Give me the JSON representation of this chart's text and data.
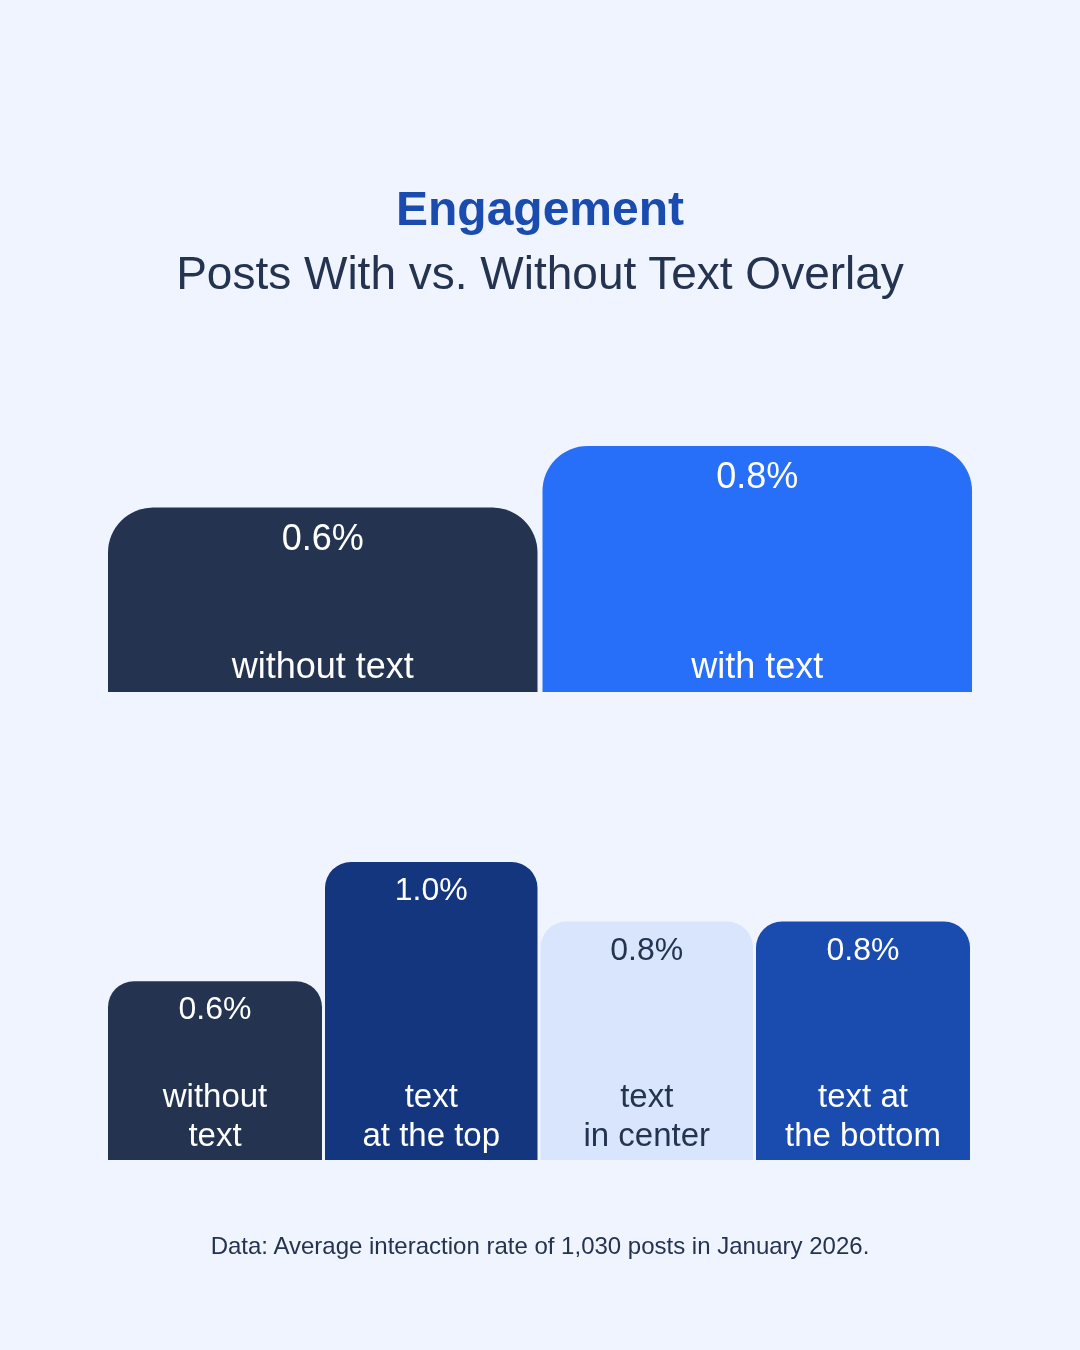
{
  "chart_data": [
    {
      "type": "bar",
      "title": "Engagement",
      "subtitle": "Posts With vs. Without Text Overlay",
      "categories": [
        "without text",
        "with text"
      ],
      "values": [
        0.6,
        0.8
      ],
      "colors": [
        "#243450",
        "#276ef8"
      ],
      "value_labels": [
        "0.6%",
        "0.8%"
      ]
    },
    {
      "type": "bar",
      "categories": [
        "without\ntext",
        "text\nat the top",
        "text\nin center",
        "text at\nthe bottom"
      ],
      "values": [
        0.6,
        1.0,
        0.8,
        0.8
      ],
      "colors": [
        "#243450",
        "#13367e",
        "#d9e5fd",
        "#1a4baf"
      ],
      "value_labels": [
        "0.6%",
        "1.0%",
        "0.8%",
        "0.8%"
      ],
      "annotations": [
        "Data: Average interaction rate of 1,030 posts in January 2026."
      ]
    }
  ]
}
